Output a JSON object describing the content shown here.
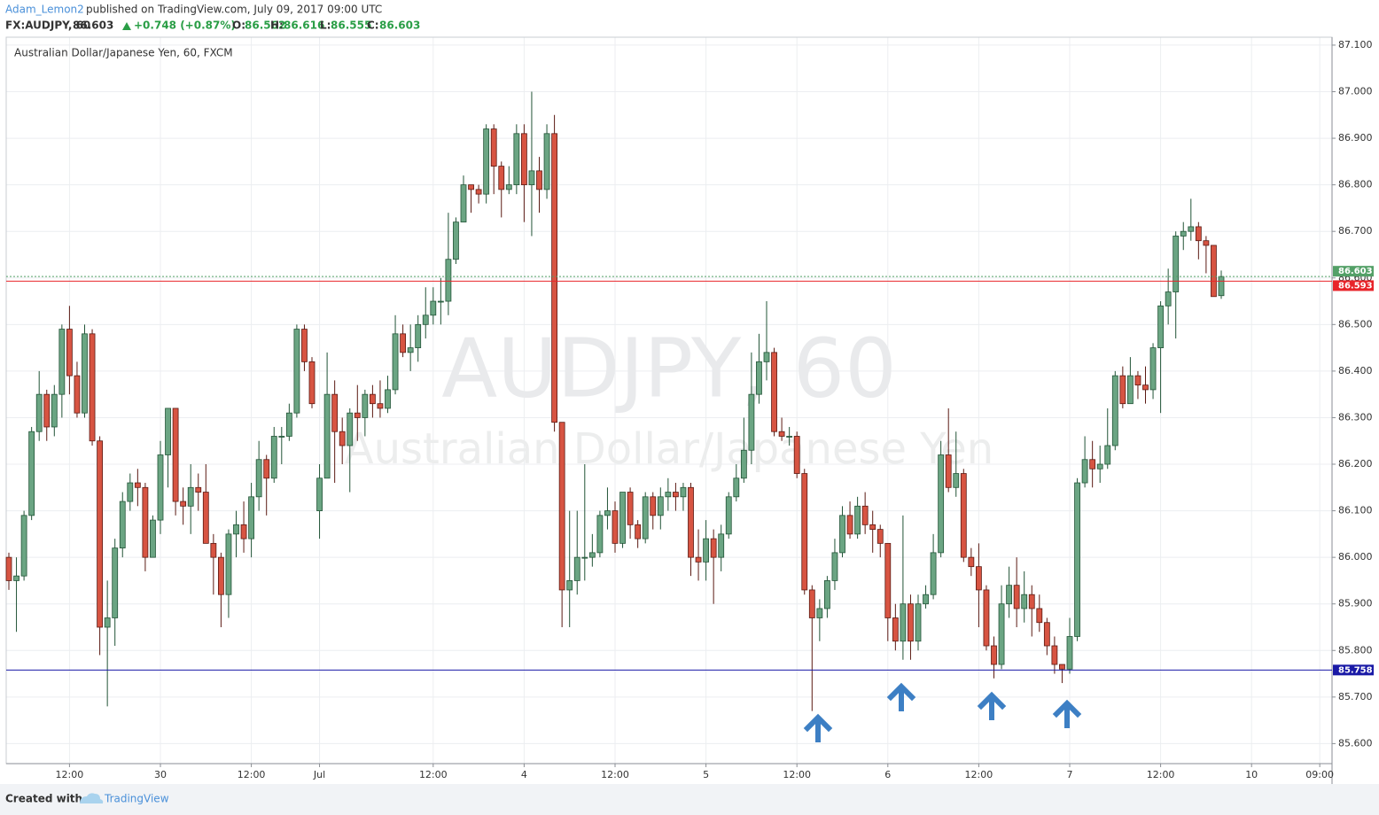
{
  "header": {
    "author": "Adam_Lemon2",
    "published": "published on TradingView.com, July 09, 2017 09:00 UTC",
    "symbol": "FX:AUDJPY, 60",
    "change": "+0.748 (+0.87%)",
    "o_label": "O:",
    "h_label": "H:",
    "l_label": "L:",
    "c_label": "C:"
  },
  "footer": {
    "created": "Created with",
    "brand": "TradingView"
  },
  "chart_data": {
    "type": "candlestick",
    "title": "Australian Dollar/Japanese Yen, 60, FXCM",
    "watermark": "AUDJPY, 60",
    "watermark_sub": "Australian Dollar/Japanese Yen",
    "categories": [
      null,
      null,
      null,
      null,
      null,
      null,
      null,
      null,
      "12:00",
      null,
      null,
      null,
      null,
      null,
      null,
      null,
      null,
      null,
      null,
      null,
      "30",
      null,
      null,
      null,
      null,
      null,
      null,
      null,
      null,
      null,
      null,
      null,
      "12:00",
      null,
      null,
      null,
      null,
      null,
      null,
      null,
      null,
      "Jul",
      null,
      null,
      null,
      null,
      null,
      null,
      null,
      null,
      null,
      null,
      null,
      null,
      null,
      null,
      "12:00",
      null,
      null,
      null,
      null,
      null,
      null,
      null,
      null,
      null,
      null,
      null,
      "4",
      null,
      null,
      null,
      null,
      null,
      null,
      null,
      null,
      null,
      null,
      null,
      "12:00",
      null,
      null,
      null,
      null,
      null,
      null,
      null,
      null,
      null,
      null,
      null,
      "5",
      null,
      null,
      null,
      null,
      null,
      null,
      null,
      null,
      null,
      null,
      null,
      "12:00",
      null,
      null,
      null,
      null,
      null,
      null,
      null,
      null,
      null,
      null,
      null,
      "6",
      null,
      null,
      null,
      null,
      null,
      null,
      null,
      null,
      null,
      null,
      null,
      "12:00",
      null,
      null,
      null,
      null,
      null,
      null,
      null,
      null,
      null,
      null,
      null,
      "7",
      null,
      null,
      null,
      null,
      null,
      null,
      null,
      null,
      null,
      null,
      null,
      "12:00",
      null,
      null,
      null,
      null,
      null,
      null,
      null,
      null,
      null,
      null,
      null,
      "10",
      null,
      null,
      null,
      null,
      null,
      null,
      null,
      null,
      "09:00"
    ],
    "open": [
      86.0,
      85.95,
      85.96,
      86.09,
      86.27,
      86.35,
      86.28,
      86.35,
      86.49,
      86.39,
      86.31,
      86.48,
      86.25,
      85.85,
      85.87,
      86.02,
      86.12,
      86.16,
      86.15,
      86.0,
      86.08,
      86.22,
      86.32,
      86.12,
      86.11,
      86.15,
      86.14,
      86.03,
      86.0,
      85.92,
      86.05,
      86.07,
      86.04,
      86.13,
      86.21,
      86.17,
      86.26,
      86.26,
      86.31,
      86.49,
      86.42,
      86.1,
      86.17,
      86.35,
      86.27,
      86.24,
      86.31,
      86.3,
      86.35,
      86.33,
      86.32,
      86.36,
      86.48,
      86.44,
      86.45,
      86.5,
      86.52,
      86.55,
      86.55,
      86.64,
      86.72,
      86.8,
      86.79,
      86.78,
      86.92,
      86.84,
      86.79,
      86.8,
      86.91,
      86.8,
      86.83,
      86.79,
      86.91,
      86.29,
      85.93,
      85.95,
      86.0,
      86.0,
      86.01,
      86.09,
      86.1,
      86.03,
      86.14,
      86.07,
      86.04,
      86.13,
      86.09,
      86.13,
      86.14,
      86.13,
      86.15,
      86.0,
      85.99,
      86.04,
      86.0,
      86.05,
      86.13,
      86.17,
      86.23,
      86.35,
      86.42,
      86.44,
      86.27,
      86.26,
      86.26,
      86.18,
      85.93,
      85.87,
      85.89,
      85.95,
      86.01,
      86.09,
      86.05,
      86.11,
      86.07,
      86.06,
      86.03,
      85.87,
      85.82,
      85.9,
      85.82,
      85.9,
      85.92,
      86.01,
      86.22,
      86.15,
      86.18,
      86.0,
      85.98,
      85.93,
      85.81,
      85.77,
      85.9,
      85.94,
      85.89,
      85.92,
      85.89,
      85.86,
      85.81,
      85.77,
      85.76,
      85.83,
      86.16,
      86.21,
      86.19,
      86.2,
      86.24,
      86.39,
      86.33,
      86.39,
      86.37,
      86.36,
      86.45,
      86.54,
      86.57,
      86.69,
      86.7,
      86.71,
      86.68,
      86.67,
      86.562,
      null,
      null,
      null,
      null,
      null,
      null,
      null,
      null,
      null,
      null,
      null,
      null,
      null
    ],
    "high": [
      86.01,
      86.0,
      86.1,
      86.28,
      86.4,
      86.36,
      86.37,
      86.5,
      86.54,
      86.42,
      86.5,
      86.49,
      86.26,
      85.95,
      86.04,
      86.14,
      86.18,
      86.19,
      86.16,
      86.09,
      86.25,
      86.32,
      86.32,
      86.15,
      86.2,
      86.18,
      86.2,
      86.05,
      86.01,
      86.06,
      86.1,
      86.12,
      86.16,
      86.25,
      86.22,
      86.28,
      86.28,
      86.33,
      86.5,
      86.5,
      86.43,
      86.2,
      86.44,
      86.38,
      86.3,
      86.32,
      86.37,
      86.36,
      86.37,
      86.38,
      86.39,
      86.52,
      86.5,
      86.5,
      86.52,
      86.58,
      86.58,
      86.6,
      86.74,
      86.73,
      86.82,
      86.8,
      86.8,
      86.93,
      86.93,
      86.85,
      86.84,
      86.93,
      86.93,
      87.0,
      86.86,
      86.93,
      86.95,
      86.29,
      86.1,
      86.1,
      86.2,
      86.05,
      86.1,
      86.15,
      86.12,
      86.14,
      86.15,
      86.08,
      86.14,
      86.14,
      86.15,
      86.17,
      86.16,
      86.16,
      86.16,
      86.06,
      86.08,
      86.06,
      86.07,
      86.14,
      86.2,
      86.3,
      86.44,
      86.48,
      86.55,
      86.45,
      86.3,
      86.28,
      86.27,
      86.19,
      85.94,
      85.91,
      85.96,
      86.04,
      86.11,
      86.12,
      86.13,
      86.14,
      86.1,
      86.07,
      86.03,
      85.9,
      86.09,
      85.92,
      85.92,
      85.94,
      86.05,
      86.25,
      86.32,
      86.27,
      86.19,
      86.02,
      86.03,
      85.94,
      85.83,
      85.94,
      85.98,
      86.0,
      85.97,
      85.94,
      85.92,
      85.87,
      85.83,
      85.77,
      85.87,
      86.17,
      86.26,
      86.25,
      86.24,
      86.32,
      86.4,
      86.41,
      86.43,
      86.4,
      86.41,
      86.46,
      86.55,
      86.62,
      86.7,
      86.72,
      86.77,
      86.72,
      86.69,
      86.67,
      86.616,
      null,
      null,
      null,
      null,
      null,
      null,
      null,
      null,
      null,
      null,
      null,
      null,
      null
    ],
    "low": [
      85.93,
      85.84,
      85.95,
      86.08,
      86.25,
      86.25,
      86.26,
      86.3,
      86.35,
      86.3,
      86.3,
      86.24,
      85.79,
      85.68,
      85.81,
      86.0,
      86.1,
      86.11,
      85.97,
      86.0,
      86.05,
      86.15,
      86.09,
      86.07,
      86.05,
      86.1,
      86.03,
      85.92,
      85.85,
      85.87,
      86.0,
      86.01,
      86.0,
      86.1,
      86.09,
      86.16,
      86.2,
      86.25,
      86.3,
      86.4,
      86.32,
      86.04,
      86.17,
      86.16,
      86.2,
      86.14,
      86.25,
      86.26,
      86.3,
      86.3,
      86.31,
      86.35,
      86.43,
      86.4,
      86.42,
      86.47,
      86.5,
      86.5,
      86.52,
      86.63,
      86.72,
      86.74,
      86.76,
      86.76,
      86.78,
      86.73,
      86.78,
      86.78,
      86.72,
      86.69,
      86.74,
      86.77,
      86.27,
      85.85,
      85.85,
      85.92,
      85.95,
      85.98,
      86.0,
      86.06,
      86.01,
      86.02,
      86.04,
      86.02,
      86.03,
      86.06,
      86.06,
      86.1,
      86.1,
      86.1,
      85.96,
      85.95,
      85.95,
      85.9,
      85.97,
      86.04,
      86.12,
      86.16,
      86.2,
      86.33,
      86.38,
      86.26,
      86.25,
      86.24,
      86.17,
      85.92,
      85.67,
      85.82,
      85.87,
      85.93,
      86.0,
      86.04,
      86.04,
      86.05,
      86.01,
      86.0,
      85.82,
      85.8,
      85.78,
      85.78,
      85.8,
      85.89,
      85.91,
      86.0,
      86.14,
      86.13,
      85.99,
      85.96,
      85.85,
      85.8,
      85.74,
      85.76,
      85.87,
      85.85,
      85.86,
      85.83,
      85.84,
      85.79,
      85.75,
      85.73,
      85.75,
      85.82,
      86.15,
      86.15,
      86.16,
      86.19,
      86.23,
      86.32,
      86.33,
      86.34,
      86.33,
      86.34,
      86.31,
      86.5,
      86.47,
      86.66,
      86.68,
      86.64,
      86.61,
      86.56,
      86.555,
      null,
      null,
      null,
      null,
      null,
      null,
      null,
      null,
      null,
      null,
      null,
      null,
      null
    ],
    "close": [
      85.95,
      85.96,
      86.09,
      86.27,
      86.35,
      86.28,
      86.35,
      86.49,
      86.39,
      86.31,
      86.48,
      86.25,
      85.85,
      85.87,
      86.02,
      86.12,
      86.16,
      86.15,
      86.0,
      86.08,
      86.22,
      86.32,
      86.12,
      86.11,
      86.15,
      86.14,
      86.03,
      86.0,
      85.92,
      86.05,
      86.07,
      86.04,
      86.13,
      86.21,
      86.17,
      86.26,
      86.26,
      86.31,
      86.49,
      86.42,
      86.33,
      86.17,
      86.35,
      86.27,
      86.24,
      86.31,
      86.3,
      86.35,
      86.33,
      86.32,
      86.36,
      86.48,
      86.44,
      86.45,
      86.5,
      86.52,
      86.55,
      86.55,
      86.64,
      86.72,
      86.8,
      86.79,
      86.78,
      86.92,
      86.84,
      86.79,
      86.8,
      86.91,
      86.8,
      86.83,
      86.79,
      86.91,
      86.29,
      85.93,
      85.95,
      86.0,
      86.0,
      86.01,
      86.09,
      86.1,
      86.03,
      86.14,
      86.07,
      86.04,
      86.13,
      86.09,
      86.13,
      86.14,
      86.13,
      86.15,
      86.0,
      85.99,
      86.04,
      86.0,
      86.05,
      86.13,
      86.17,
      86.23,
      86.35,
      86.42,
      86.44,
      86.27,
      86.26,
      86.26,
      86.18,
      85.93,
      85.87,
      85.89,
      85.95,
      86.01,
      86.09,
      86.05,
      86.11,
      86.07,
      86.06,
      86.03,
      85.87,
      85.82,
      85.9,
      85.82,
      85.9,
      85.92,
      86.01,
      86.22,
      86.15,
      86.18,
      86.0,
      85.98,
      85.93,
      85.81,
      85.77,
      85.9,
      85.94,
      85.89,
      85.92,
      85.89,
      85.86,
      85.81,
      85.77,
      85.76,
      85.83,
      86.16,
      86.21,
      86.19,
      86.2,
      86.24,
      86.39,
      86.33,
      86.39,
      86.37,
      86.36,
      86.45,
      86.54,
      86.57,
      86.69,
      86.7,
      86.71,
      86.68,
      86.67,
      86.56,
      86.603,
      null,
      null,
      null,
      null,
      null,
      null,
      null,
      null,
      null,
      null,
      null,
      null,
      null
    ],
    "up_color": "#6ba583",
    "down_color": "#d75442",
    "up_edge": "#225437",
    "down_edge": "#5b1a13",
    "ylim": [
      85.557,
      87.117
    ],
    "yticks": [
      {
        "value": 85.6,
        "label": "85.600"
      },
      {
        "value": 85.7,
        "label": "85.700"
      },
      {
        "value": 85.8,
        "label": "85.800"
      },
      {
        "value": 85.9,
        "label": "85.900"
      },
      {
        "value": 86.0,
        "label": "86.000"
      },
      {
        "value": 86.1,
        "label": "86.100"
      },
      {
        "value": 86.2,
        "label": "86.200"
      },
      {
        "value": 86.3,
        "label": "86.300"
      },
      {
        "value": 86.4,
        "label": "86.400"
      },
      {
        "value": 86.5,
        "label": "86.500"
      },
      {
        "value": 86.6,
        "label": "86.600"
      },
      {
        "value": 86.7,
        "label": "86.700"
      },
      {
        "value": 86.8,
        "label": "86.800"
      },
      {
        "value": 86.9,
        "label": "86.900"
      },
      {
        "value": 87.0,
        "label": "87.000"
      },
      {
        "value": 87.1,
        "label": "87.100"
      }
    ],
    "hlines": [
      {
        "value": 86.603,
        "color": "#53a067",
        "dashed": true
      },
      {
        "value": 86.593,
        "color": "#e8242a",
        "dashed": false
      },
      {
        "value": 85.758,
        "color": "#1a1aa6",
        "dashed": false
      }
    ],
    "grid": true
  }
}
